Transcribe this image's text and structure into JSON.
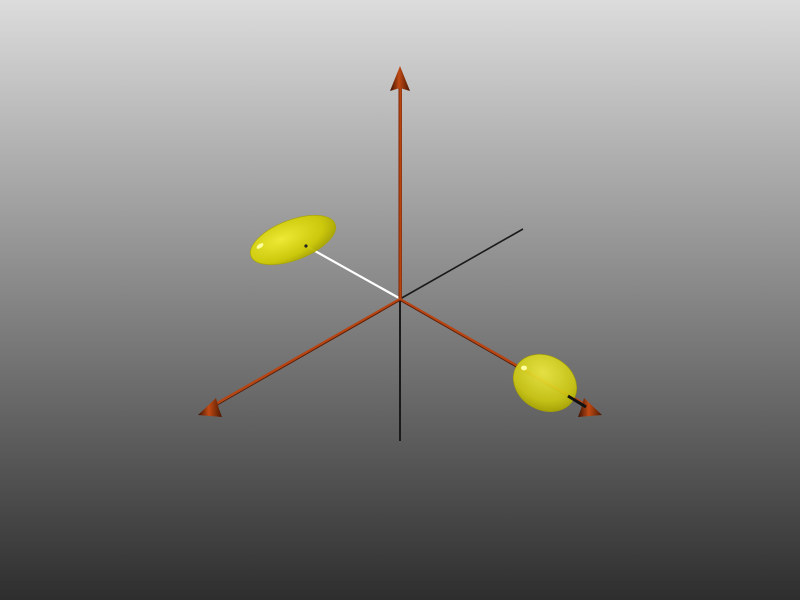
{
  "scene": {
    "background": {
      "top_color": "#dcdcdc",
      "bottom_color": "#2e2e2e"
    },
    "axis_colors": {
      "positive_start": "#6a1c00",
      "positive_mid": "#c44a12",
      "positive_end": "#7a2400",
      "negative": "#1a1a1a",
      "arrowhead": "#9a3008"
    },
    "direction_line_colors": {
      "light": "#ffffff",
      "dark": "#111111"
    },
    "ellipsoid_colors": {
      "fill": "#d8d400",
      "rim": "#a8a400",
      "highlight": "#ffffa0"
    },
    "axes": [
      {
        "name": "vertical",
        "has_arrow": true
      },
      {
        "name": "left",
        "has_arrow": true
      },
      {
        "name": "right",
        "has_arrow": true
      }
    ],
    "ellipsoids": [
      {
        "name": "upper-left",
        "shape": "oblate"
      },
      {
        "name": "lower-right",
        "shape": "rounded"
      }
    ]
  }
}
